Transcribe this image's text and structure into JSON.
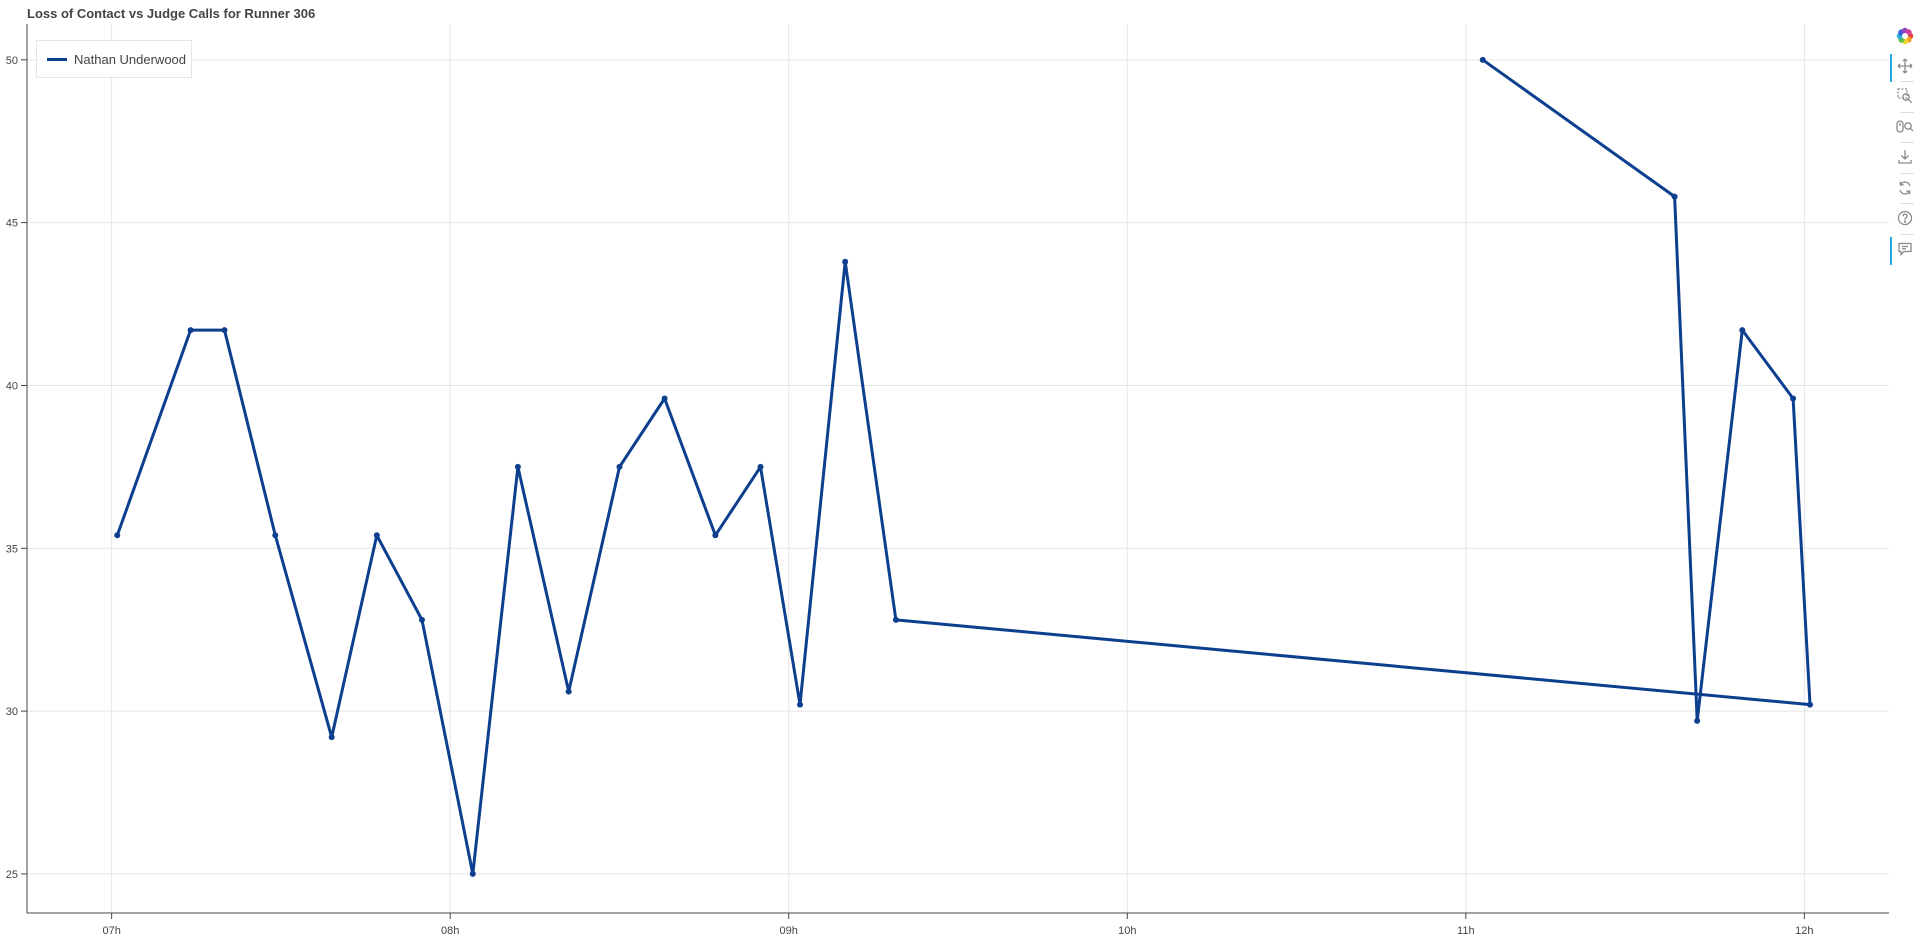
{
  "colors": {
    "series": "#0d3f8f",
    "grid": "#e5e5e5",
    "axis": "#444444",
    "tick_label": "#444444",
    "tool_icon": "#8a8a8a",
    "tool_active": "#26aae1"
  },
  "toolbar": {
    "tools": [
      {
        "icon": "bokeh-logo-icon",
        "active": false
      },
      {
        "icon": "pan-icon",
        "active": true
      },
      {
        "icon": "box-zoom-icon",
        "active": false
      },
      {
        "icon": "wheel-zoom-icon",
        "active": false
      },
      {
        "icon": "save-icon",
        "active": false
      },
      {
        "icon": "reset-icon",
        "active": false
      },
      {
        "icon": "help-icon",
        "active": false
      },
      {
        "icon": "hover-icon",
        "active": true
      }
    ]
  },
  "chart_data": {
    "type": "line",
    "title": "Loss of Contact vs Judge Calls for Runner 306",
    "xlabel": "",
    "ylabel": "",
    "x_tick_labels": [
      "07h",
      "08h",
      "09h",
      "10h",
      "11h",
      "12h"
    ],
    "y_tick_labels": [
      "25",
      "30",
      "35",
      "40",
      "45",
      "50"
    ],
    "x_ticks": [
      "07:00",
      "08:00",
      "09:00",
      "10:00",
      "11:00",
      "12:00"
    ],
    "y_ticks": [
      25,
      30,
      35,
      40,
      45,
      50
    ],
    "xlim": [
      "06:45",
      "12:15"
    ],
    "ylim": [
      23.8,
      51.1
    ],
    "grid": true,
    "legend": "top-left",
    "series": [
      {
        "name": "Nathan Underwood",
        "color": "#0d3f8f",
        "marker": "circle",
        "x": [
          "07:01",
          "07:14",
          "07:20",
          "07:29",
          "07:39",
          "07:47",
          "07:55",
          "08:04",
          "08:12",
          "08:21",
          "08:30",
          "08:38",
          "08:47",
          "08:55",
          "09:02",
          "09:10",
          "09:19",
          "12:01",
          "11:58",
          "11:49",
          "11:41",
          "11:37",
          "11:03"
        ],
        "y": [
          35.4,
          41.7,
          41.7,
          35.4,
          29.2,
          35.4,
          32.8,
          25.0,
          37.5,
          30.6,
          37.5,
          39.6,
          35.4,
          37.5,
          30.2,
          43.8,
          32.8,
          30.2,
          39.6,
          41.7,
          29.7,
          45.8,
          50.0
        ]
      }
    ]
  }
}
